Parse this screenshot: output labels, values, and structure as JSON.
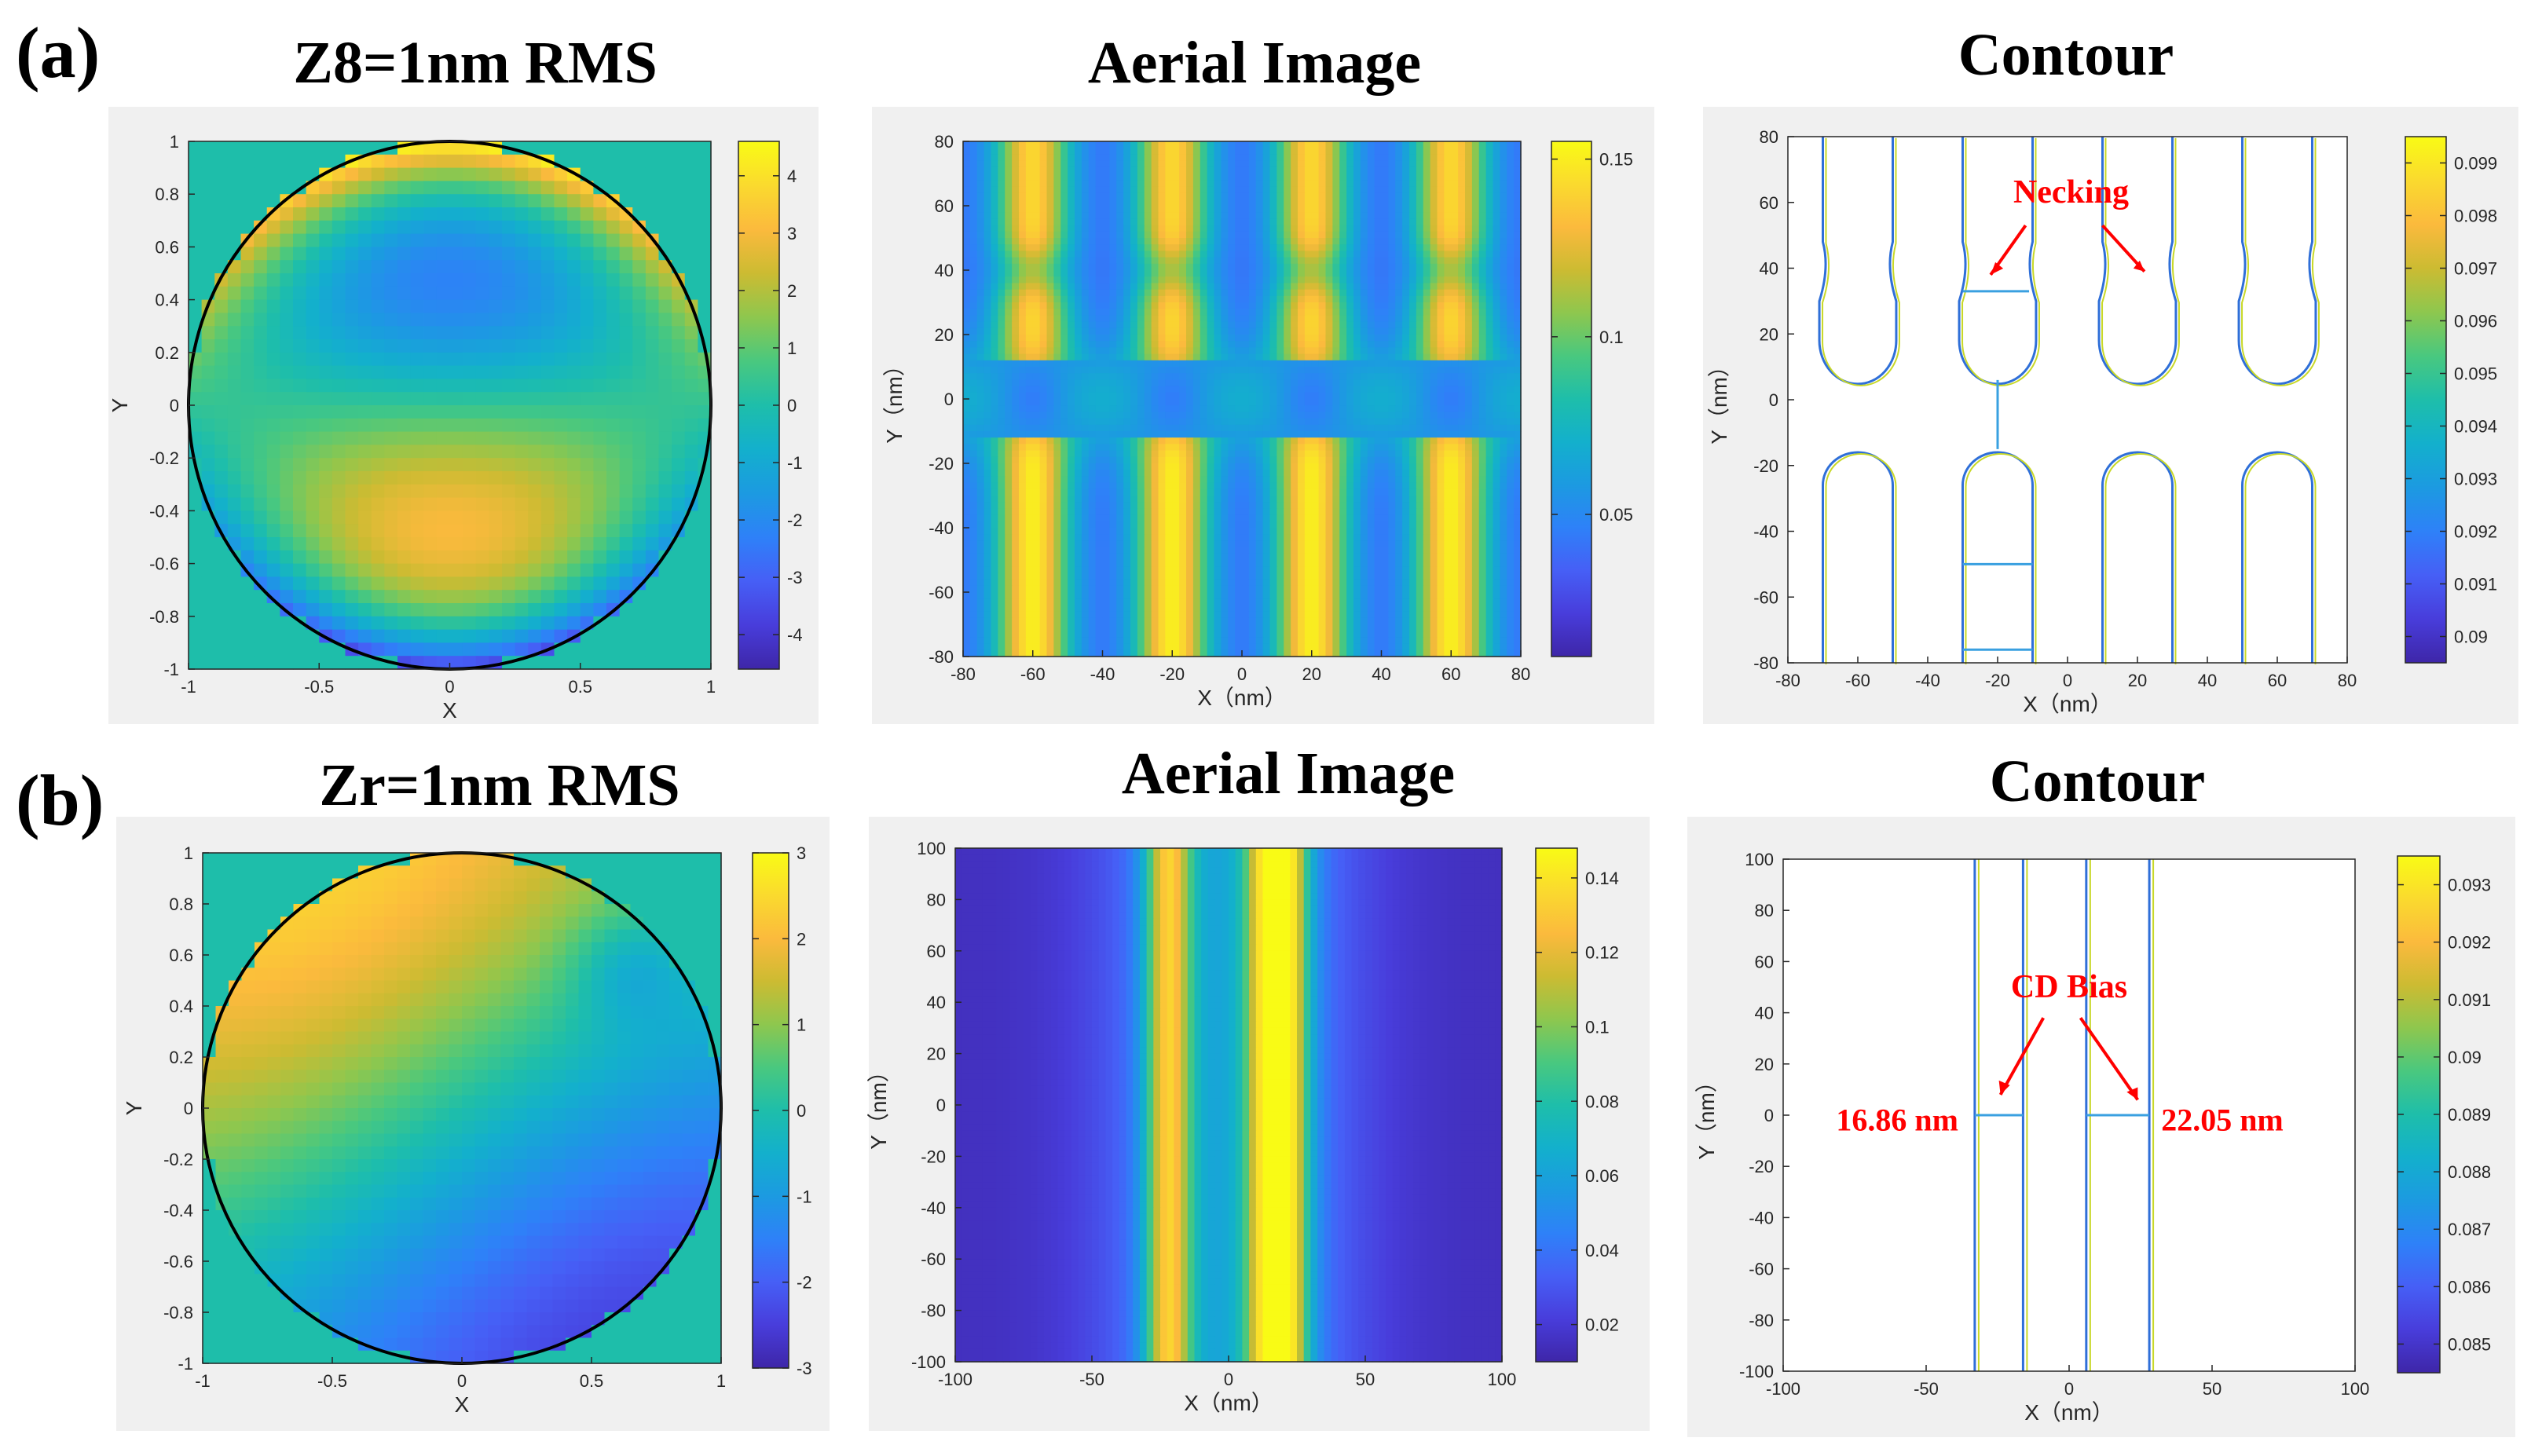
{
  "figure": {
    "row_labels": [
      "(a)",
      "(b)"
    ]
  },
  "chart_data": [
    {
      "type": "heatmap",
      "row": "a",
      "col": 0,
      "title": "Z8=1nm RMS",
      "xlabel": "X",
      "ylabel": "Y",
      "xlim": [
        -1,
        1
      ],
      "ylim": [
        -1,
        1
      ],
      "xticks": [
        "-1",
        "-0.5",
        "0",
        "0.5",
        "1"
      ],
      "yticks": [
        "1",
        "0.8",
        "0.6",
        "0.4",
        "0.2",
        "0",
        "-0.2",
        "-0.4",
        "-0.6",
        "-0.8",
        "-1"
      ],
      "colorbar": {
        "range": [
          -4.6,
          4.6
        ],
        "ticks": [
          "4",
          "3",
          "2",
          "1",
          "0",
          "-1",
          "-2",
          "-3",
          "-4"
        ]
      },
      "field": "z8"
    },
    {
      "type": "heatmap",
      "row": "a",
      "col": 1,
      "title": "Aerial Image",
      "xlabel": "X（nm）",
      "ylabel": "Y（nm）",
      "xlim": [
        -80,
        80
      ],
      "ylim": [
        -80,
        80
      ],
      "xticks": [
        "-80",
        "-60",
        "-40",
        "-20",
        "0",
        "20",
        "40",
        "60",
        "80"
      ],
      "yticks": [
        "80",
        "60",
        "40",
        "20",
        "0",
        "-20",
        "-40",
        "-60",
        "-80"
      ],
      "colorbar": {
        "range": [
          0.01,
          0.155
        ],
        "ticks": [
          "0.15",
          "0.1",
          "0.05"
        ]
      },
      "field": "aerial_a"
    },
    {
      "type": "line",
      "row": "a",
      "col": 2,
      "title": "Contour",
      "xlabel": "X（nm）",
      "ylabel": "Y（nm）",
      "xlim": [
        -80,
        80
      ],
      "ylim": [
        -80,
        80
      ],
      "xticks": [
        "-80",
        "-60",
        "-40",
        "-20",
        "0",
        "20",
        "40",
        "60",
        "80"
      ],
      "yticks": [
        "80",
        "60",
        "40",
        "20",
        "0",
        "-20",
        "-40",
        "-60",
        "-80"
      ],
      "colorbar": {
        "range": [
          0.0895,
          0.0995
        ],
        "ticks": [
          "0.099",
          "0.098",
          "0.097",
          "0.096",
          "0.095",
          "0.094",
          "0.093",
          "0.092",
          "0.091",
          "0.09"
        ]
      },
      "lines_x_centers": [
        -60,
        -20,
        20,
        60
      ],
      "annotation": "Necking"
    },
    {
      "type": "heatmap",
      "row": "b",
      "col": 0,
      "title": "Zr=1nm RMS",
      "xlabel": "X",
      "ylabel": "Y",
      "xlim": [
        -1,
        1
      ],
      "ylim": [
        -1,
        1
      ],
      "xticks": [
        "-1",
        "-0.5",
        "0",
        "0.5",
        "1"
      ],
      "yticks": [
        "1",
        "0.8",
        "0.6",
        "0.4",
        "0.2",
        "0",
        "-0.2",
        "-0.4",
        "-0.6",
        "-0.8",
        "-1"
      ],
      "colorbar": {
        "range": [
          -3,
          3
        ],
        "ticks": [
          "3",
          "2",
          "1",
          "0",
          "-1",
          "-2",
          "-3"
        ]
      },
      "field": "zr"
    },
    {
      "type": "heatmap",
      "row": "b",
      "col": 1,
      "title": "Aerial Image",
      "xlabel": "X（nm）",
      "ylabel": "Y（nm）",
      "xlim": [
        -100,
        100
      ],
      "ylim": [
        -100,
        100
      ],
      "xticks": [
        "-100",
        "-50",
        "0",
        "50",
        "100"
      ],
      "yticks": [
        "100",
        "80",
        "60",
        "40",
        "20",
        "0",
        "-20",
        "-40",
        "-60",
        "-80",
        "-100"
      ],
      "colorbar": {
        "range": [
          0.01,
          0.148
        ],
        "ticks": [
          "0.14",
          "0.12",
          "0.1",
          "0.08",
          "0.06",
          "0.04",
          "0.02"
        ]
      },
      "field": "aerial_b"
    },
    {
      "type": "line",
      "row": "b",
      "col": 2,
      "title": "Contour",
      "xlabel": "X（nm）",
      "ylabel": "Y（nm）",
      "xlim": [
        -100,
        100
      ],
      "ylim": [
        -100,
        100
      ],
      "xticks": [
        "-100",
        "-50",
        "0",
        "50",
        "100"
      ],
      "yticks": [
        "100",
        "80",
        "60",
        "40",
        "20",
        "0",
        "-20",
        "-40",
        "-60",
        "-80",
        "-100"
      ],
      "colorbar": {
        "range": [
          0.0845,
          0.0935
        ],
        "ticks": [
          "0.093",
          "0.092",
          "0.091",
          "0.09",
          "0.089",
          "0.088",
          "0.087",
          "0.086",
          "0.085"
        ]
      },
      "lines_x_edges": [
        [
          -33,
          -16.1
        ],
        [
          6,
          28.05
        ]
      ],
      "annotation": "CD Bias",
      "cd_values": [
        "16.86 nm",
        "22.05 nm"
      ]
    }
  ]
}
